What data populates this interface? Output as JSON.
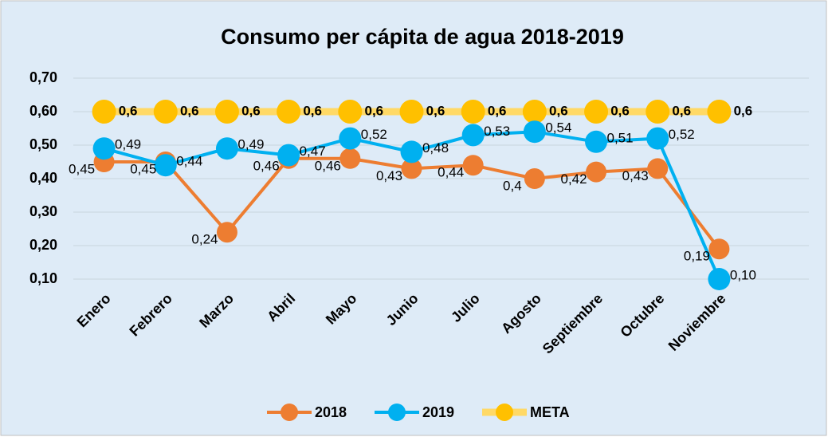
{
  "chart_data": {
    "type": "line",
    "title": "Consumo per cápita de agua 2018-2019",
    "categories": [
      "Enero",
      "Febrero",
      "Marzo",
      "Abril",
      "Mayo",
      "Junio",
      "Julio",
      "Agosto",
      "Septiembre",
      "Octubre",
      "Noviembre"
    ],
    "series": [
      {
        "name": "2018",
        "color": "#ed7d31",
        "values": [
          0.45,
          0.45,
          0.24,
          0.46,
          0.46,
          0.43,
          0.44,
          0.4,
          0.42,
          0.43,
          0.19
        ],
        "value_labels": [
          "0,45",
          "0,45",
          "0,24",
          "0,46",
          "0,46",
          "0,43",
          "0,44",
          "0,4",
          "0,42",
          "0,43",
          "0,19"
        ]
      },
      {
        "name": "2019",
        "color": "#00b0f0",
        "values": [
          0.49,
          0.44,
          0.49,
          0.47,
          0.52,
          0.48,
          0.53,
          0.54,
          0.51,
          0.52,
          0.1
        ],
        "value_labels": [
          "0,49",
          "0,44",
          "0,49",
          "0,47",
          "0,52",
          "0,48",
          "0,53",
          "0,54",
          "0,51",
          "0,52",
          "0,10"
        ]
      },
      {
        "name": "META",
        "color": "#ffc000",
        "values": [
          0.6,
          0.6,
          0.6,
          0.6,
          0.6,
          0.6,
          0.6,
          0.6,
          0.6,
          0.6,
          0.6
        ],
        "value_labels": [
          "0,6",
          "0,6",
          "0,6",
          "0,6",
          "0,6",
          "0,6",
          "0,6",
          "0,6",
          "0,6",
          "0,6",
          "0,6"
        ]
      }
    ],
    "ylim": [
      0.1,
      0.7
    ],
    "yticks": [
      {
        "value": 0.1,
        "label": "0,10"
      },
      {
        "value": 0.2,
        "label": "0,20"
      },
      {
        "value": 0.3,
        "label": "0,30"
      },
      {
        "value": 0.4,
        "label": "0,40"
      },
      {
        "value": 0.5,
        "label": "0,50"
      },
      {
        "value": 0.6,
        "label": "0,60"
      },
      {
        "value": 0.7,
        "label": "0,70"
      }
    ],
    "grid": true,
    "legend": "bottom"
  }
}
